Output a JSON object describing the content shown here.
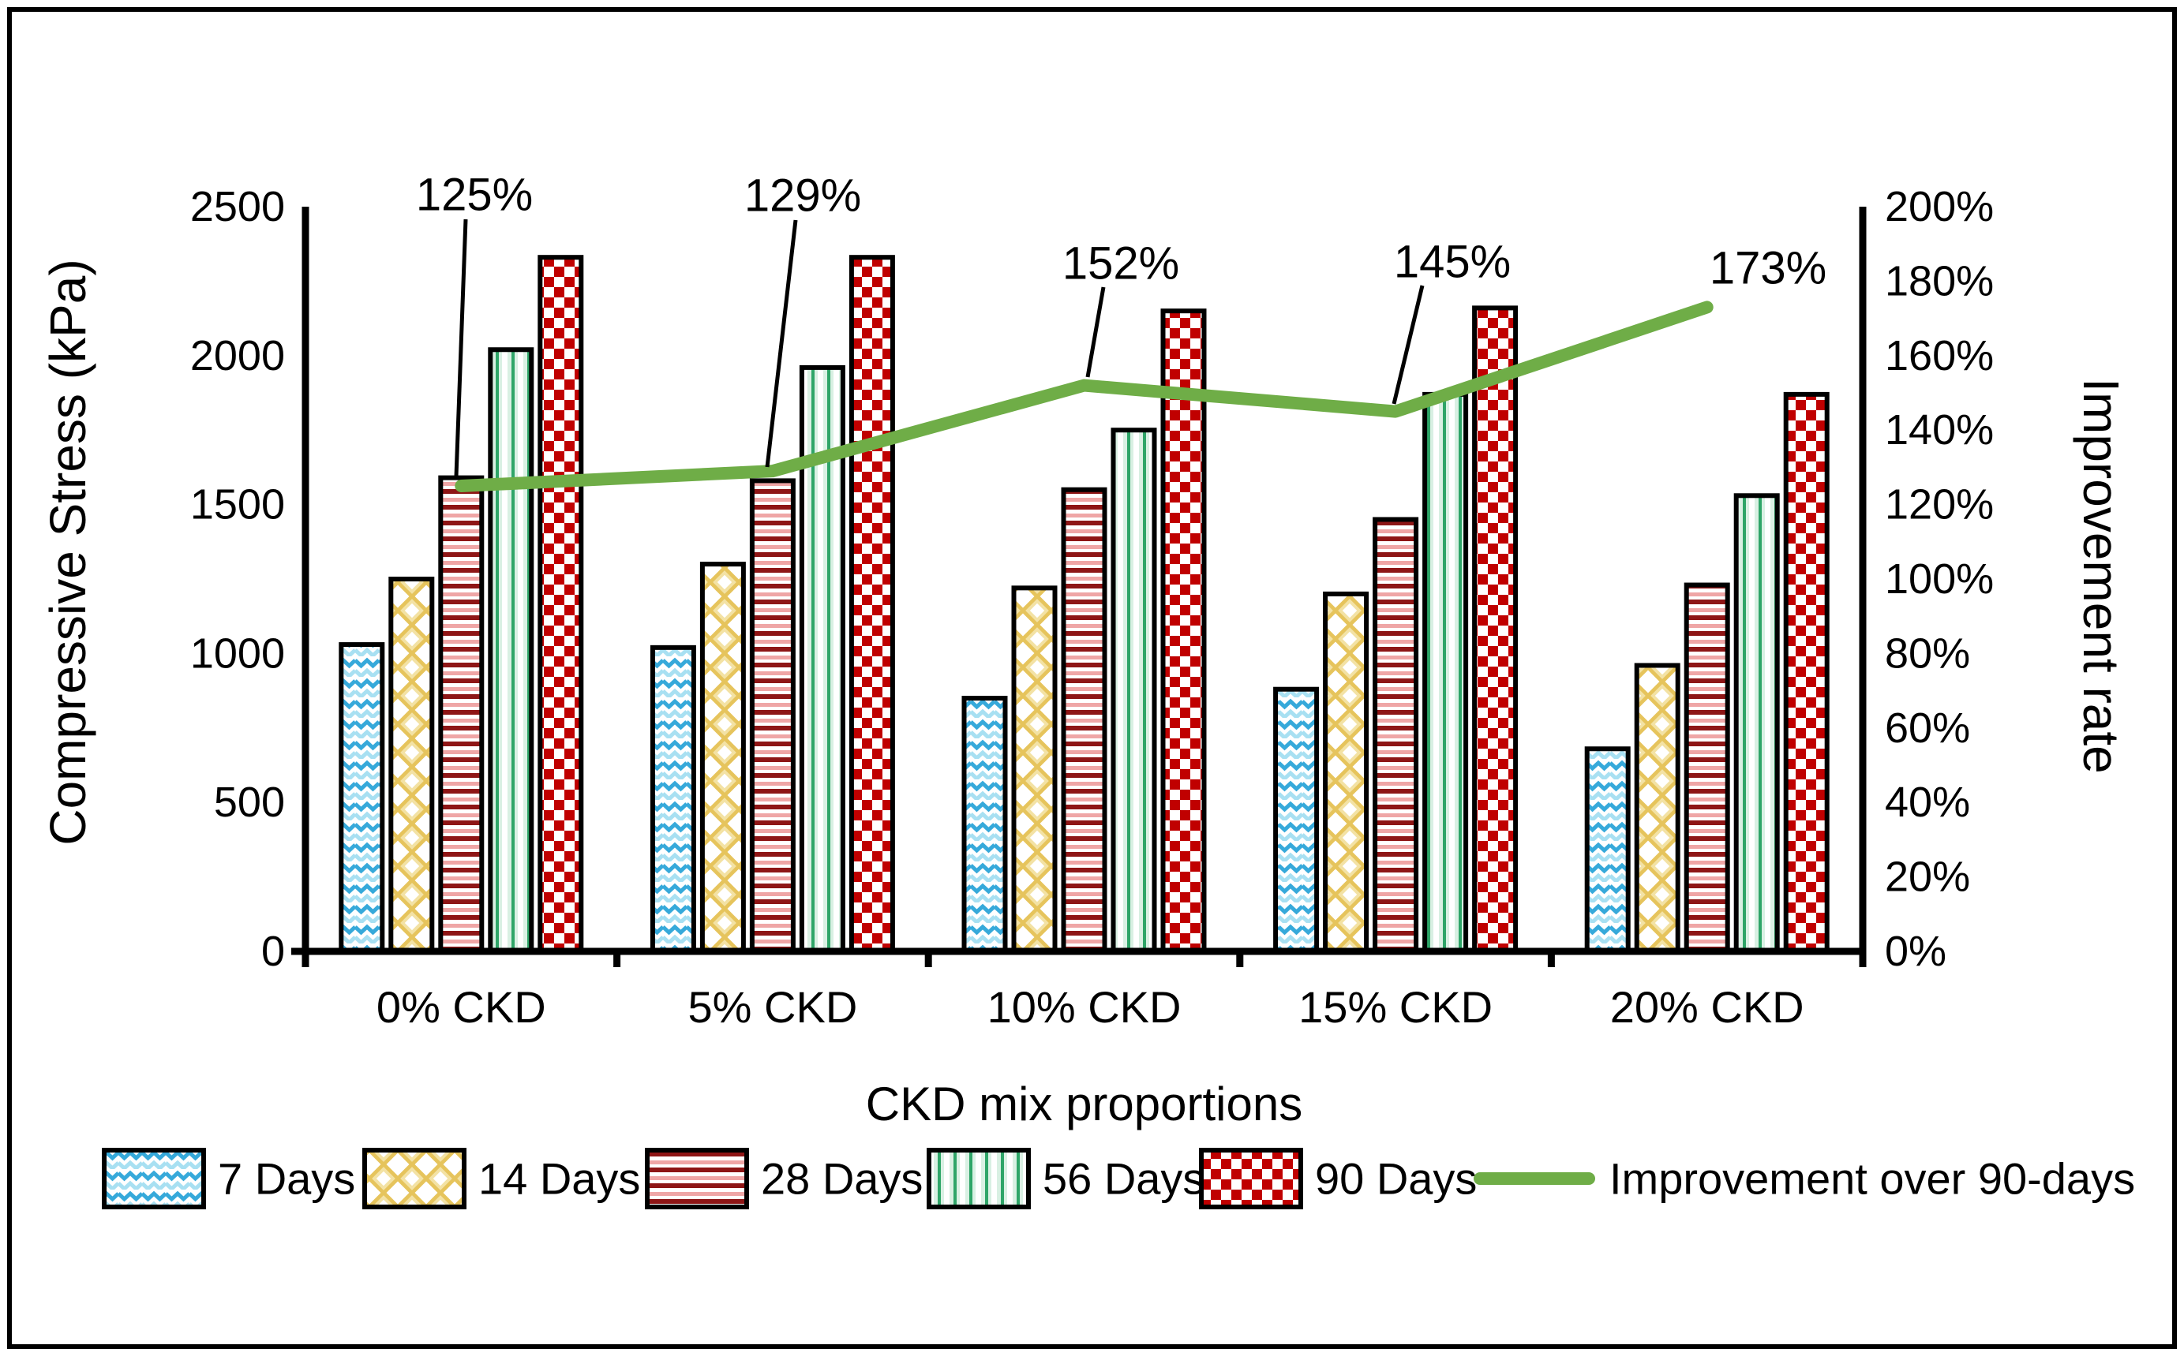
{
  "figure": {
    "background": "#ffffff",
    "border_color": "#000000"
  },
  "left_axis": {
    "title": "Compressive Stress (kPa)",
    "min": 0,
    "max": 2500,
    "tick_step": 500,
    "tick_labels": [
      "0",
      "500",
      "1000",
      "1500",
      "2000",
      "2500"
    ]
  },
  "right_axis": {
    "title": "Improvement rate",
    "min": 0,
    "max": 200,
    "tick_step": 20,
    "tick_labels": [
      "0%",
      "20%",
      "40%",
      "60%",
      "80%",
      "100%",
      "120%",
      "140%",
      "160%",
      "180%",
      "200%"
    ]
  },
  "x_axis": {
    "title": "CKD mix proportions",
    "categories": [
      "0% CKD",
      "5% CKD",
      "10% CKD",
      "15% CKD",
      "20% CKD"
    ]
  },
  "legend": {
    "items": [
      {
        "label": "7 Days",
        "pattern": "wave-blue"
      },
      {
        "label": "14 Days",
        "pattern": "lattice-gold"
      },
      {
        "label": "28 Days",
        "pattern": "hstripe-red"
      },
      {
        "label": "56 Days",
        "pattern": "vstripe-green"
      },
      {
        "label": "90 Days",
        "pattern": "checker-red"
      },
      {
        "label": "Improvement over 90-days",
        "pattern": "line-green"
      }
    ]
  },
  "annotations": [
    "125%",
    "129%",
    "152%",
    "145%",
    "173%"
  ],
  "colors": {
    "line_green": "#6FAD47",
    "wave_blue_dark": "#36A9DA",
    "wave_blue_light": "#A8E0F2",
    "gold": "#E6C45C",
    "gold_light": "#F3E2A4",
    "stripe_red_dark": "#8E1616",
    "stripe_red_pink": "#EFA6A6",
    "green_pale": "#D9F0E3",
    "green_strong": "#2FA568",
    "checker_red": "#C00000",
    "axis_black": "#000000"
  },
  "chart_data": {
    "type": "bar+line",
    "title": "",
    "xlabel": "CKD mix proportions",
    "ylabel_left": "Compressive Stress (kPa)",
    "ylabel_right": "Improvement rate",
    "ylim_left": [
      0,
      2500
    ],
    "ylim_right_percent": [
      0,
      200
    ],
    "grid": false,
    "legend_position": "bottom",
    "categories": [
      "0% CKD",
      "5% CKD",
      "10% CKD",
      "15% CKD",
      "20% CKD"
    ],
    "bar_series": [
      {
        "name": "7 Days",
        "pattern": "wave-blue",
        "values": [
          1030,
          1020,
          850,
          880,
          680
        ]
      },
      {
        "name": "14 Days",
        "pattern": "lattice-gold",
        "values": [
          1250,
          1300,
          1220,
          1200,
          960
        ]
      },
      {
        "name": "28 Days",
        "pattern": "hstripe-red",
        "values": [
          1590,
          1580,
          1550,
          1450,
          1230
        ]
      },
      {
        "name": "56 Days",
        "pattern": "vstripe-green",
        "values": [
          2020,
          1960,
          1750,
          1870,
          1530
        ]
      },
      {
        "name": "90 Days",
        "pattern": "checker-red",
        "values": [
          2330,
          2330,
          2150,
          2160,
          1870
        ]
      }
    ],
    "line_series": {
      "name": "Improvement over 90-days",
      "color": "#6FAD47",
      "values_percent": [
        125,
        129,
        152,
        145,
        173
      ],
      "point_labels": [
        "125%",
        "129%",
        "152%",
        "145%",
        "173%"
      ]
    }
  }
}
